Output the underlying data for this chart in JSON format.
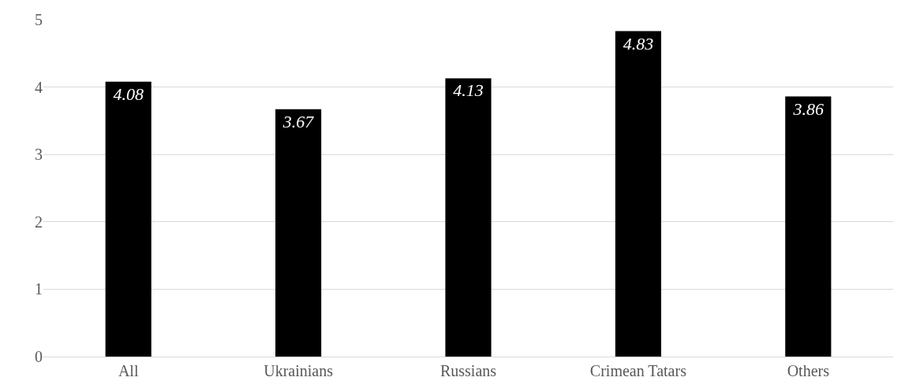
{
  "chart_data": {
    "type": "bar",
    "categories": [
      "All",
      "Ukrainians",
      "Russians",
      "Crimean Tatars",
      "Others"
    ],
    "values": [
      4.08,
      3.67,
      4.13,
      4.83,
      3.86
    ],
    "color": "#000000",
    "ylim": [
      0,
      5
    ],
    "yticks": [
      0,
      1,
      2,
      3,
      4,
      5
    ],
    "grid": "y",
    "data_labels": true
  }
}
